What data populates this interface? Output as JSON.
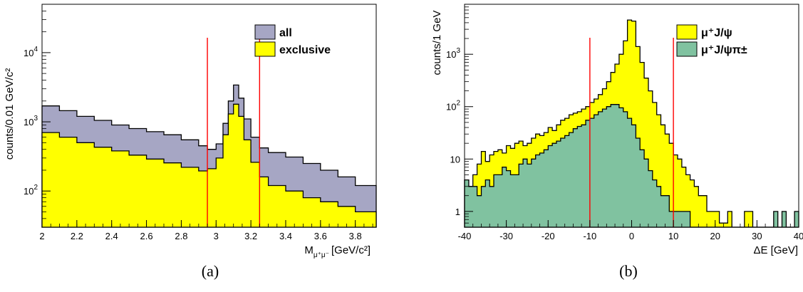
{
  "chart_data": [
    {
      "type": "histogram",
      "panel_label": "(a)",
      "xlabel": "M",
      "xlabel_sub": "μ⁺μ⁻",
      "xlabel_unit": "[GeV/c²]",
      "ylabel": "counts/0.01 GeV/c²",
      "xlim": [
        2.0,
        3.92
      ],
      "ylim": [
        30,
        50000
      ],
      "yscale": "log",
      "x_ticks": [
        "2",
        "2.2",
        "2.4",
        "2.6",
        "2.8",
        "3",
        "3.2",
        "3.4",
        "3.6",
        "3.8"
      ],
      "y_ticks": [
        {
          "base": "10",
          "exp": "2",
          "value": 100
        },
        {
          "base": "10",
          "exp": "3",
          "value": 1000
        },
        {
          "base": "10",
          "exp": "4",
          "value": 10000
        }
      ],
      "vlines": [
        2.95,
        3.25
      ],
      "legend_position": "top-right",
      "series": [
        {
          "name": "all",
          "color": "#a6a6c4",
          "x": [
            2.0,
            2.1,
            2.2,
            2.3,
            2.4,
            2.5,
            2.6,
            2.7,
            2.8,
            2.9,
            2.95,
            3.0,
            3.04,
            3.07,
            3.1,
            3.13,
            3.16,
            3.2,
            3.25,
            3.3,
            3.4,
            3.5,
            3.6,
            3.7,
            3.8,
            3.92
          ],
          "values": [
            1700,
            1450,
            1200,
            1050,
            900,
            800,
            720,
            650,
            550,
            450,
            400,
            480,
            950,
            2000,
            3400,
            2200,
            1100,
            600,
            420,
            360,
            310,
            250,
            200,
            160,
            120,
            95
          ]
        },
        {
          "name": "exclusive",
          "color": "#ffff00",
          "x": [
            2.0,
            2.1,
            2.2,
            2.3,
            2.4,
            2.5,
            2.6,
            2.7,
            2.8,
            2.9,
            2.95,
            3.0,
            3.04,
            3.07,
            3.1,
            3.13,
            3.16,
            3.2,
            3.25,
            3.3,
            3.4,
            3.5,
            3.6,
            3.7,
            3.8,
            3.92
          ],
          "values": [
            700,
            600,
            500,
            430,
            380,
            330,
            290,
            255,
            220,
            195,
            210,
            300,
            650,
            1300,
            1800,
            1200,
            550,
            260,
            160,
            120,
            100,
            80,
            70,
            60,
            50,
            45
          ]
        }
      ]
    },
    {
      "type": "histogram",
      "panel_label": "(b)",
      "xlabel": "ΔE [GeV]",
      "ylabel": "counts/1 GeV",
      "xlim": [
        -40,
        40
      ],
      "ylim": [
        0.5,
        9000
      ],
      "yscale": "log",
      "x_ticks": [
        "-40",
        "-30",
        "-20",
        "-10",
        "0",
        "10",
        "20",
        "30",
        "40"
      ],
      "y_ticks": [
        {
          "label": "1",
          "value": 1
        },
        {
          "label": "10",
          "value": 10
        },
        {
          "base": "10",
          "exp": "2",
          "value": 100
        },
        {
          "base": "10",
          "exp": "3",
          "value": 1000
        }
      ],
      "vlines": [
        -10,
        10
      ],
      "legend_position": "top-right",
      "series": [
        {
          "name": "μ⁺J/ψ",
          "color": "#ffff00",
          "x": [
            -40,
            -39,
            -38,
            -37,
            -36,
            -35,
            -34,
            -33,
            -32,
            -31,
            -30,
            -29,
            -28,
            -27,
            -26,
            -25,
            -24,
            -23,
            -22,
            -21,
            -20,
            -19,
            -18,
            -17,
            -16,
            -15,
            -14,
            -13,
            -12,
            -11,
            -10,
            -9,
            -8,
            -7,
            -6,
            -5,
            -4,
            -3,
            -2,
            -1,
            0,
            1,
            2,
            3,
            4,
            5,
            6,
            7,
            8,
            9,
            10,
            11,
            12,
            13,
            14,
            15,
            16,
            17,
            18,
            19,
            20,
            21,
            22,
            23,
            24,
            25,
            26,
            27,
            28,
            29,
            30,
            31,
            32,
            33,
            34,
            35,
            36,
            37,
            38,
            39
          ],
          "values": [
            4,
            3,
            5,
            8,
            14,
            9,
            12,
            14,
            15,
            13,
            18,
            16,
            20,
            22,
            18,
            20,
            25,
            30,
            28,
            32,
            40,
            35,
            45,
            55,
            60,
            70,
            75,
            80,
            90,
            100,
            120,
            140,
            170,
            220,
            300,
            450,
            650,
            1000,
            1800,
            4500,
            4300,
            1400,
            700,
            350,
            200,
            120,
            70,
            45,
            30,
            20,
            12,
            10,
            7,
            5,
            4,
            3,
            2,
            2,
            1,
            1,
            1,
            0.6,
            0.6,
            1,
            0,
            0,
            0,
            1,
            1,
            0,
            0,
            0,
            0,
            0,
            0,
            0,
            0,
            0,
            0,
            0
          ]
        },
        {
          "name": "μ⁺J/ψπ±",
          "color": "#80c2a0",
          "x": [
            -40,
            -39,
            -38,
            -37,
            -36,
            -35,
            -34,
            -33,
            -32,
            -31,
            -30,
            -29,
            -28,
            -27,
            -26,
            -25,
            -24,
            -23,
            -22,
            -21,
            -20,
            -19,
            -18,
            -17,
            -16,
            -15,
            -14,
            -13,
            -12,
            -11,
            -10,
            -9,
            -8,
            -7,
            -6,
            -5,
            -4,
            -3,
            -2,
            -1,
            0,
            1,
            2,
            3,
            4,
            5,
            6,
            7,
            8,
            9,
            10,
            11,
            12,
            13,
            14,
            15,
            16,
            17,
            18,
            19,
            20,
            21,
            22,
            23,
            24,
            25,
            26,
            27,
            28,
            29,
            30,
            31,
            32,
            33,
            34,
            35,
            36,
            37,
            38,
            39
          ],
          "values": [
            4,
            3,
            3,
            2,
            3,
            4,
            3,
            5,
            5,
            7,
            6,
            5,
            5,
            8,
            10,
            8,
            10,
            12,
            13,
            15,
            18,
            20,
            22,
            25,
            28,
            32,
            38,
            42,
            45,
            55,
            60,
            70,
            80,
            90,
            100,
            110,
            110,
            95,
            80,
            60,
            45,
            25,
            15,
            10,
            6,
            4,
            3,
            2,
            2,
            1,
            1,
            1,
            1,
            1,
            0,
            0,
            0,
            0,
            0,
            0,
            0,
            0,
            0,
            0,
            0,
            0,
            0,
            0,
            0,
            0,
            0,
            0,
            0,
            0,
            1,
            0,
            1,
            0,
            0,
            1
          ]
        }
      ]
    }
  ]
}
